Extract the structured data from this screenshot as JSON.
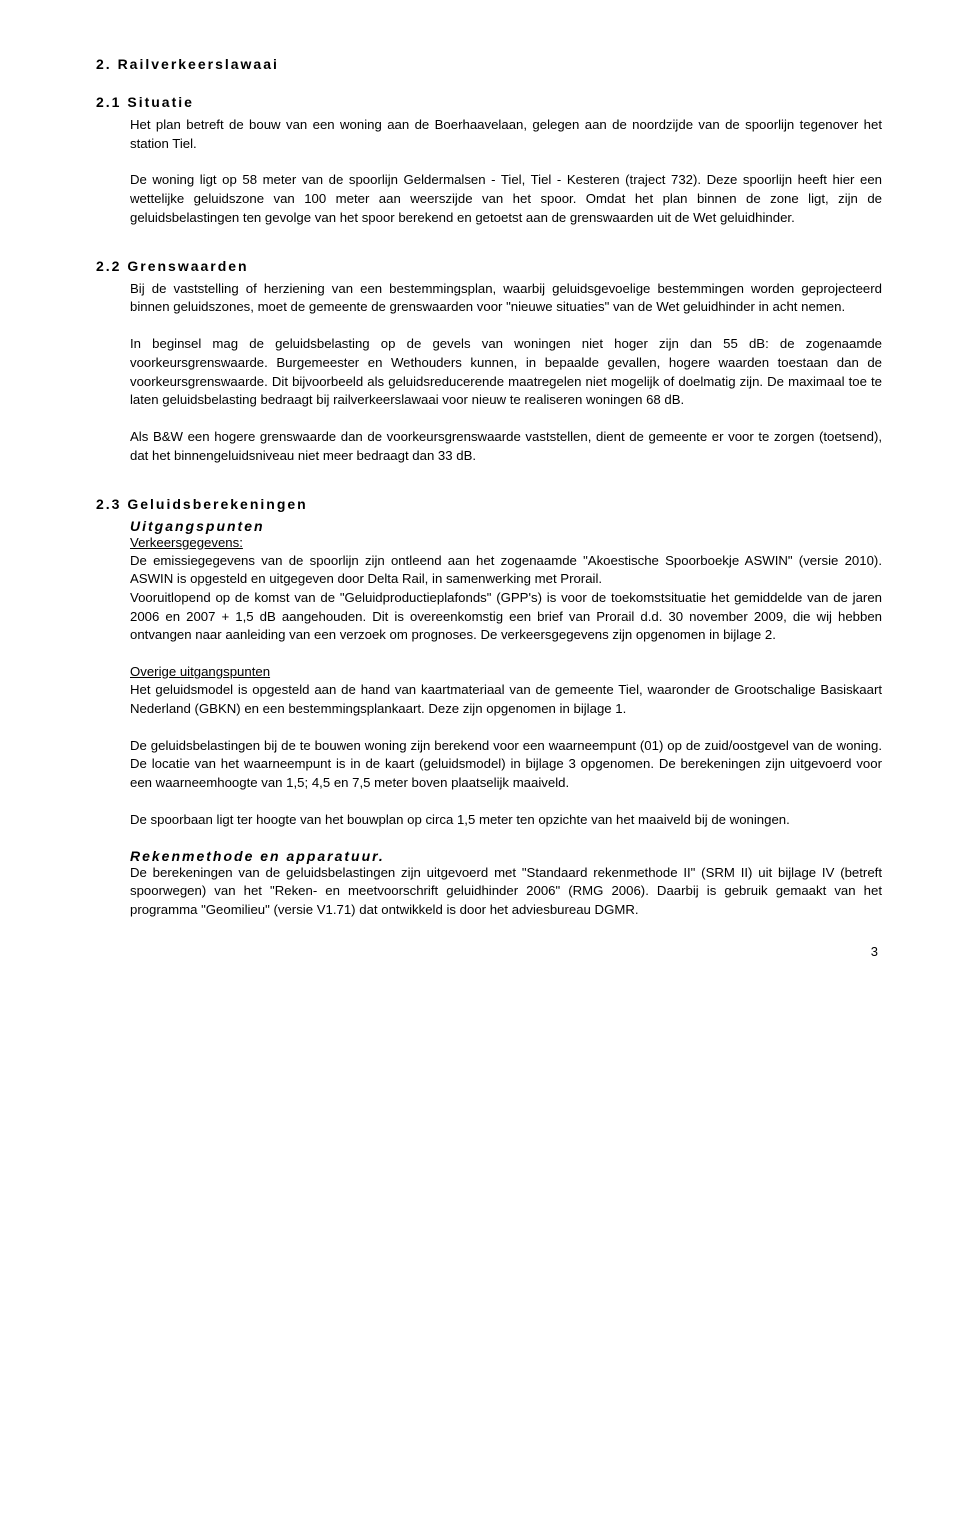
{
  "section2": {
    "heading": "2. Railverkeerslawaai",
    "s21": {
      "heading": "2.1 Situatie",
      "p1": "Het plan betreft de bouw van een woning aan de Boerhaavelaan, gelegen aan de noordzijde van de spoorlijn tegenover het station Tiel.",
      "p2": "De woning ligt op 58 meter van de spoorlijn Geldermalsen - Tiel, Tiel - Kesteren (traject 732). Deze spoorlijn heeft hier een wettelijke geluidszone van 100 meter aan weerszijde van het spoor. Omdat het plan binnen de zone ligt, zijn de geluidsbelastingen ten gevolge van het spoor berekend en getoetst aan de grenswaarden uit de Wet geluidhinder."
    },
    "s22": {
      "heading": "2.2 Grenswaarden",
      "p1": "Bij de vaststelling of herziening van een bestemmingsplan, waarbij geluidsgevoelige bestemmingen worden geprojecteerd binnen geluidszones, moet de gemeente de grenswaarden voor \"nieuwe situaties\" van de Wet geluidhinder in acht nemen.",
      "p2": "In beginsel mag de geluidsbelasting op de gevels van woningen niet hoger zijn dan 55 dB: de zogenaamde voorkeursgrenswaarde. Burgemeester en Wethouders kunnen, in bepaalde gevallen, hogere waarden toestaan dan de voorkeursgrenswaarde. Dit bijvoorbeeld als geluidsreducerende maatregelen niet mogelijk of doelmatig zijn. De maximaal toe te laten geluidsbelasting bedraagt bij railverkeerslawaai voor nieuw te realiseren woningen 68 dB.",
      "p3": "Als B&W een hogere grenswaarde dan de voorkeursgrenswaarde vaststellen, dient de gemeente er voor te zorgen (toetsend), dat het binnengeluidsniveau niet meer bedraagt dan 33 dB."
    },
    "s23": {
      "heading": "2.3 Geluidsberekeningen",
      "sub1_heading": "Uitgangspunten",
      "sub1_underline": "Verkeersgegevens:",
      "p1": "De emissiegegevens van de spoorlijn zijn ontleend aan het zogenaamde \"Akoestische Spoorboekje ASWIN\" (versie 2010). ASWIN is opgesteld en uitgegeven door Delta Rail, in samenwerking met Prorail.",
      "p2": "Vooruitlopend op de komst van de \"Geluidproductieplafonds\" (GPP's) is voor de toekomstsituatie het gemiddelde van de jaren 2006 en 2007 + 1,5 dB aangehouden. Dit is overeenkomstig een brief van Prorail d.d. 30 november 2009, die wij hebben ontvangen naar aanleiding van een verzoek om prognoses. De verkeersgegevens zijn opgenomen in bijlage 2.",
      "sub2_underline": "Overige uitgangspunten",
      "p3": "Het geluidsmodel is opgesteld aan de hand van kaartmateriaal van de gemeente Tiel, waaronder de Grootschalige Basiskaart Nederland (GBKN) en een bestemmingsplankaart. Deze zijn opgenomen in bijlage 1.",
      "p4": "De geluidsbelastingen bij de te bouwen woning zijn berekend voor een waarneempunt (01) op de zuid/oostgevel van de woning. De locatie van het waarneempunt is in de kaart (geluidsmodel) in bijlage 3 opgenomen. De berekeningen zijn uitgevoerd voor een waarneemhoogte van 1,5; 4,5 en 7,5 meter boven plaatselijk maaiveld.",
      "p5": "De spoorbaan ligt ter hoogte van het bouwplan op circa 1,5 meter ten opzichte van het maaiveld bij de woningen.",
      "sub3_heading": "Rekenmethode en apparatuur.",
      "p6": "De berekeningen van de geluidsbelastingen zijn uitgevoerd met \"Standaard rekenmethode II\" (SRM II) uit bijlage IV (betreft spoorwegen) van het \"Reken- en meetvoorschrift geluidhinder 2006\" (RMG 2006). Daarbij is gebruik gemaakt van het programma \"Geomilieu\" (versie V1.71) dat ontwikkeld is door het adviesbureau DGMR."
    }
  },
  "page_number": "3"
}
